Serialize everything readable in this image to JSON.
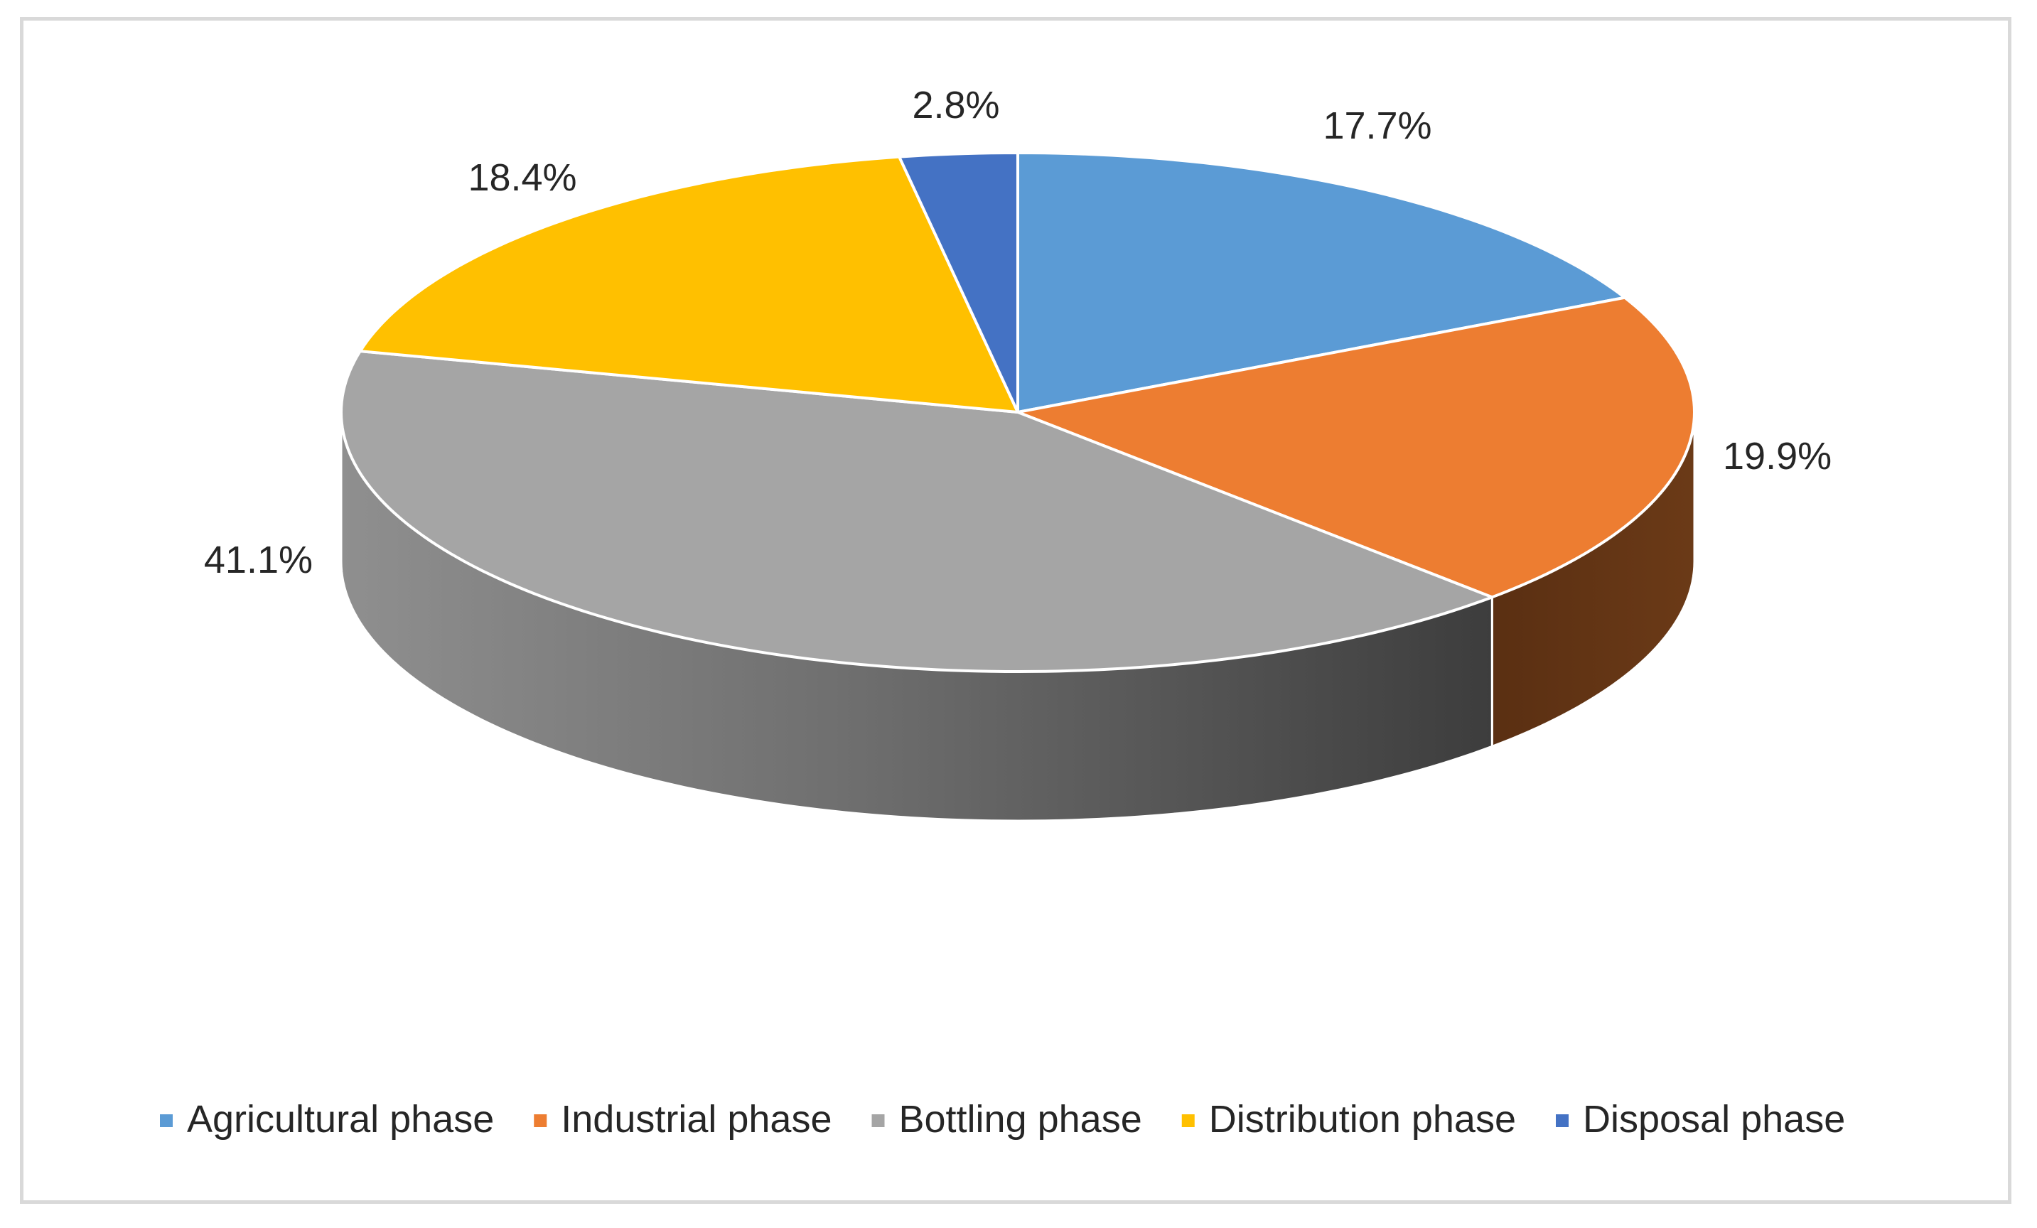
{
  "chart_data": {
    "type": "pie",
    "style": "3d",
    "title": "",
    "series": [
      {
        "name": "",
        "values": [
          17.7,
          19.9,
          41.1,
          18.4,
          2.8
        ]
      }
    ],
    "categories": [
      "Agricultural phase",
      "Industrial phase",
      "Bottling phase",
      "Distribution phase",
      "Disposal phase"
    ],
    "slices": [
      {
        "label": "Agricultural phase",
        "value": 17.7,
        "data_label": "17.7%",
        "color": "#5b9bd5",
        "side_color": "#3a6f9e"
      },
      {
        "label": "Industrial phase",
        "value": 19.9,
        "data_label": "19.9%",
        "color": "#ed7d31",
        "side_color": "#613414"
      },
      {
        "label": "Bottling phase",
        "value": 41.1,
        "data_label": "41.1%",
        "color": "#a5a5a5",
        "side_color": "#6b6b6b"
      },
      {
        "label": "Distribution phase",
        "value": 18.4,
        "data_label": "18.4%",
        "color": "#ffc000",
        "side_color": "#8a6800"
      },
      {
        "label": "Disposal phase",
        "value": 2.8,
        "data_label": "2.8%",
        "color": "#4472c4",
        "side_color": "#2a4a84"
      }
    ],
    "legend_position": "bottom",
    "start_angle_deg": 0,
    "direction": "clockwise"
  }
}
